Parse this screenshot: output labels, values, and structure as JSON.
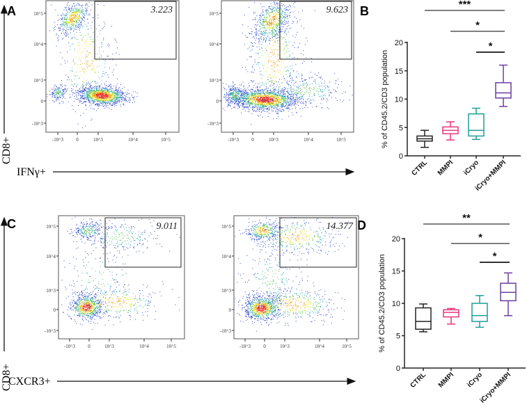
{
  "panel_labels": {
    "a": "A",
    "b": "B",
    "c": "C",
    "d": "D"
  },
  "flow": {
    "y_axis_label": "CD8+",
    "ytick_labels": [
      "10^5",
      "10^4",
      "10^3",
      "0",
      "-10^3"
    ],
    "xtick_labels": [
      "-10^3",
      "0",
      "10^3",
      "10^4",
      "10^5"
    ],
    "row_a": {
      "x_axis_label": "IFNγ+",
      "gates": [
        "3.223",
        "9.623"
      ]
    },
    "row_c": {
      "x_axis_label": "CXCR3+",
      "gates": [
        "9.011",
        "14.377"
      ]
    }
  },
  "chart_data": [
    {
      "panel": "B",
      "type": "box",
      "ylabel": "% of CD45.2/CD3 population",
      "ylim": [
        0,
        20
      ],
      "yticks": [
        0,
        5,
        10,
        15,
        20
      ],
      "categories": [
        "CTRL",
        "MMPI",
        "iCryo",
        "iCryo+MMPI"
      ],
      "colors": [
        "#222222",
        "#e8357e",
        "#1e9e9a",
        "#6a3fa0"
      ],
      "boxes": [
        {
          "min": 1.5,
          "q1": 2.6,
          "median": 3.0,
          "q3": 3.5,
          "max": 4.5
        },
        {
          "min": 2.8,
          "q1": 3.9,
          "median": 4.5,
          "q3": 5.1,
          "max": 6.0
        },
        {
          "min": 2.9,
          "q1": 3.5,
          "median": 4.5,
          "q3": 7.4,
          "max": 8.4
        },
        {
          "min": 8.7,
          "q1": 10.2,
          "median": 11.1,
          "q3": 12.9,
          "max": 16.0
        }
      ],
      "significance": [
        {
          "from": "CTRL",
          "to": "iCryo+MMPI",
          "label": "***"
        },
        {
          "from": "MMPI",
          "to": "iCryo+MMPI",
          "label": "*"
        },
        {
          "from": "iCryo",
          "to": "iCryo+MMPI",
          "label": "*"
        }
      ]
    },
    {
      "panel": "D",
      "type": "box",
      "ylabel": "% of CD45.2/CD3 population",
      "ylim": [
        0,
        20
      ],
      "yticks": [
        0,
        5,
        10,
        15,
        20
      ],
      "categories": [
        "CTRL",
        "MMPI",
        "iCryo",
        "iCryo+MMPI"
      ],
      "colors": [
        "#222222",
        "#e8357e",
        "#1e9e9a",
        "#6a3fa0"
      ],
      "boxes": [
        {
          "min": 5.6,
          "q1": 6.0,
          "median": 7.2,
          "q3": 9.3,
          "max": 9.9
        },
        {
          "min": 6.8,
          "q1": 7.9,
          "median": 8.6,
          "q3": 9.0,
          "max": 9.2
        },
        {
          "min": 6.3,
          "q1": 7.2,
          "median": 8.1,
          "q3": 10.0,
          "max": 11.2
        },
        {
          "min": 8.1,
          "q1": 10.4,
          "median": 11.7,
          "q3": 13.1,
          "max": 14.7
        }
      ],
      "significance": [
        {
          "from": "CTRL",
          "to": "iCryo+MMPI",
          "label": "**"
        },
        {
          "from": "MMPI",
          "to": "iCryo+MMPI",
          "label": "*"
        },
        {
          "from": "iCryo",
          "to": "iCryo+MMPI",
          "label": "*"
        }
      ]
    }
  ]
}
